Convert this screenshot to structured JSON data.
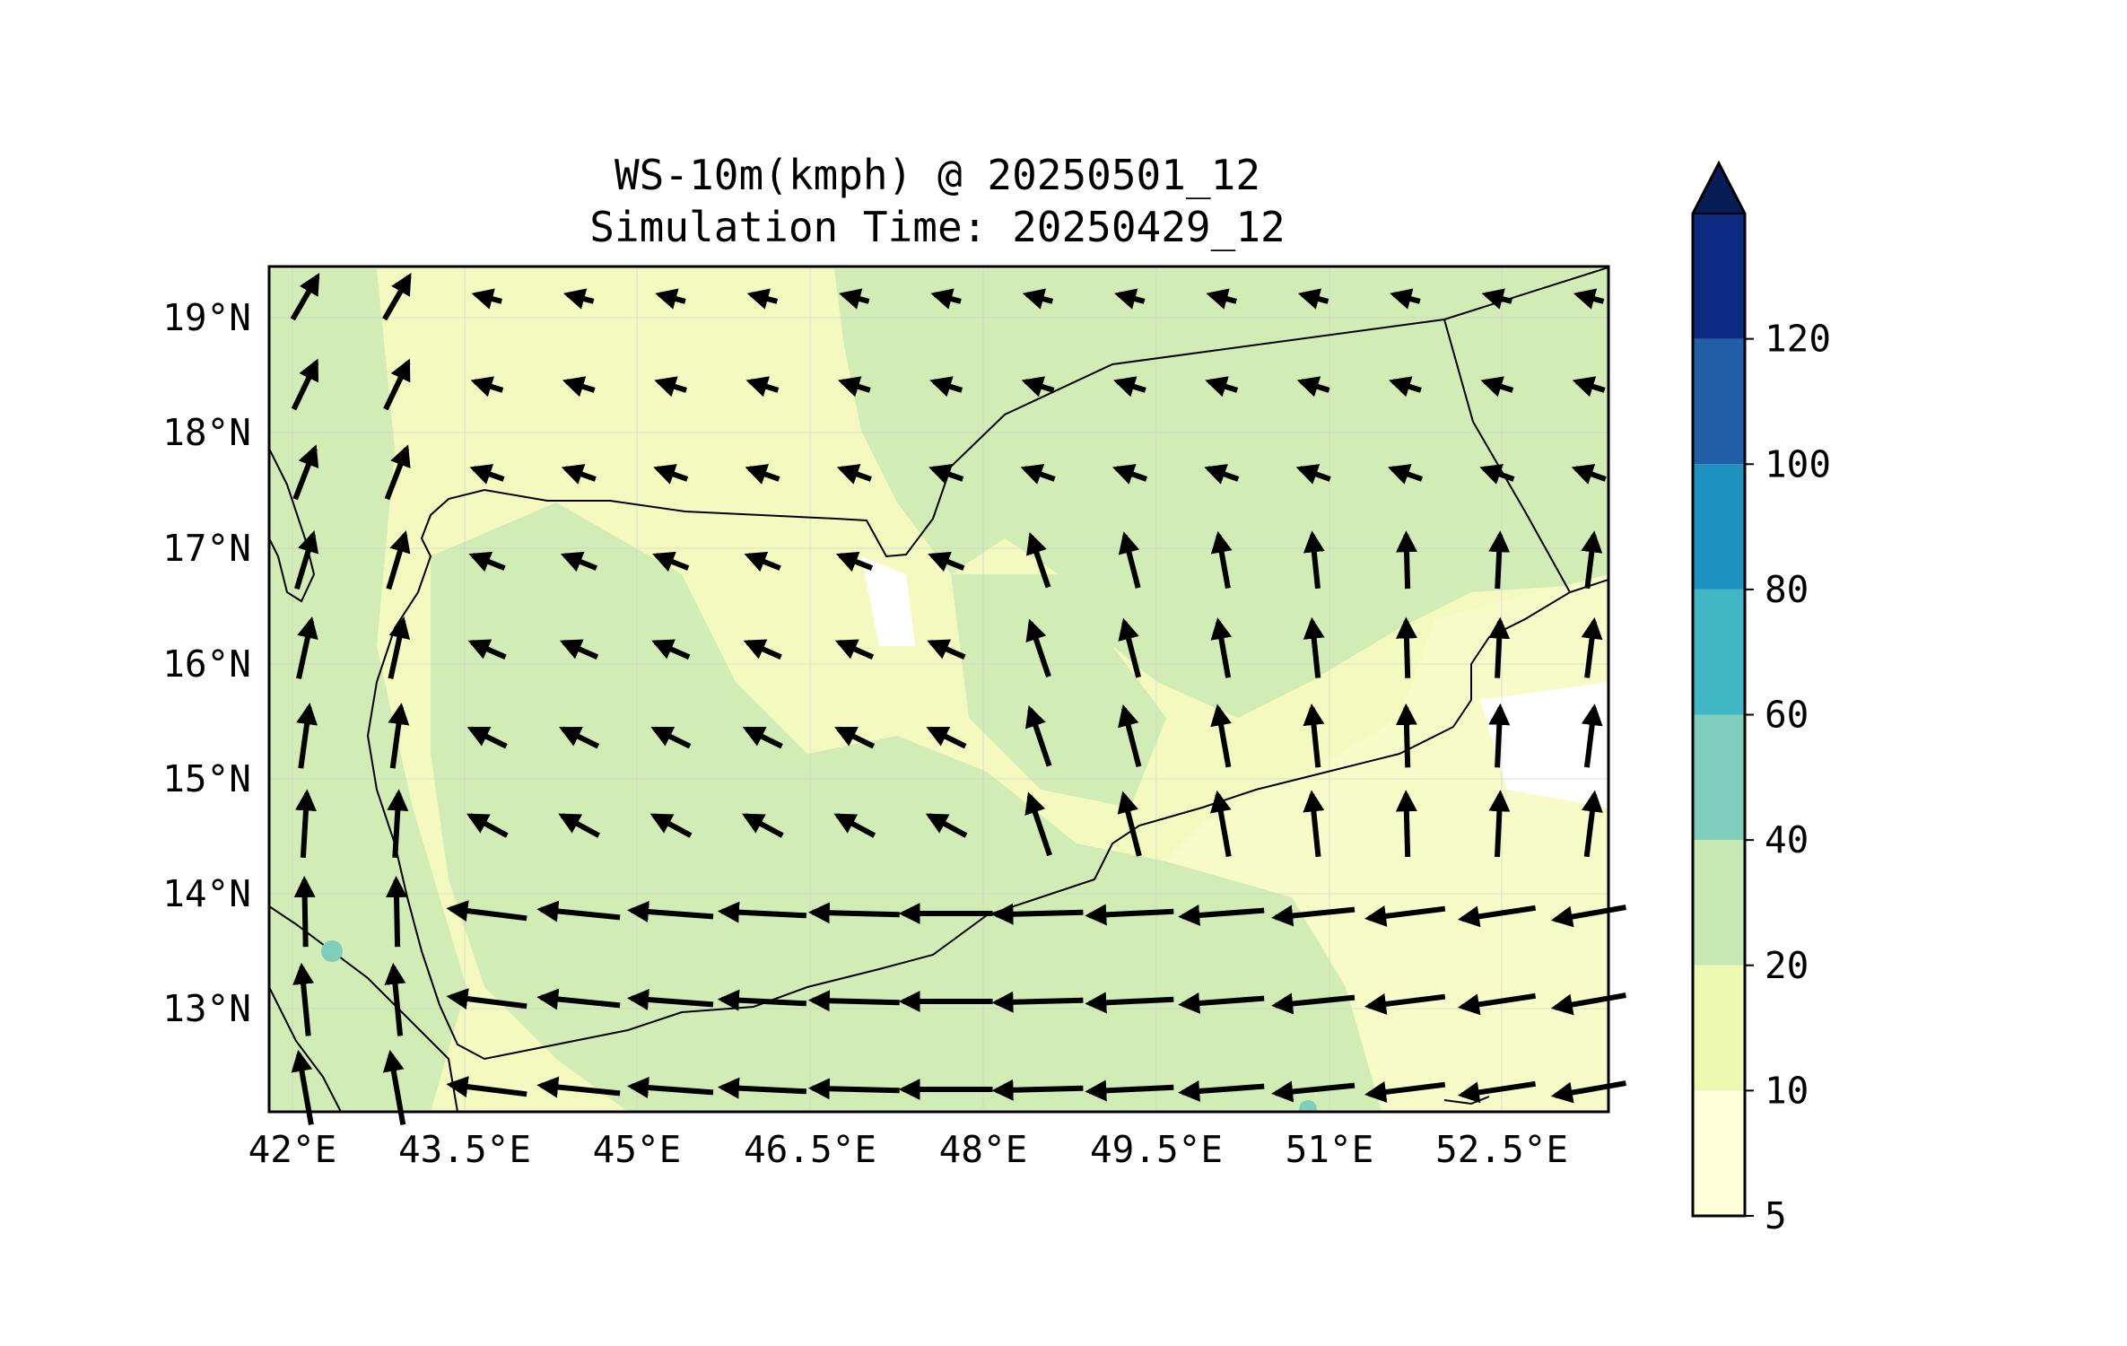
{
  "title_line1": "WS-10m(kmph) @ 20250501_12",
  "title_line2": "Simulation Time: 20250429_12",
  "map": {
    "lon_range": [
      41.9,
      53.5
    ],
    "lat_range": [
      12.1,
      19.45
    ],
    "lon_ticks": [
      "42°E",
      "43.5°E",
      "45°E",
      "46.5°E",
      "48°E",
      "49.5°E",
      "51°E",
      "52.5°E"
    ],
    "lat_ticks": [
      "19°N",
      "18°N",
      "17°N",
      "16°N",
      "15°N",
      "14°N",
      "13°N"
    ],
    "grid": true,
    "coastline_color": "#000000"
  },
  "colorbar": {
    "levels": [
      "5",
      "10",
      "20",
      "40",
      "60",
      "80",
      "100",
      "120"
    ],
    "colors": [
      "#ffffd9",
      "#edf8b1",
      "#c7e9b4",
      "#7fcdbb",
      "#41b6c4",
      "#1d91c0",
      "#225ea8",
      "#0c2c84"
    ],
    "extend": "max",
    "extend_color": "#081d58"
  },
  "background_colors": {
    "light": "#f4fabf",
    "medium": "#d1ecb5",
    "pale": "#fbfdd4"
  }
}
